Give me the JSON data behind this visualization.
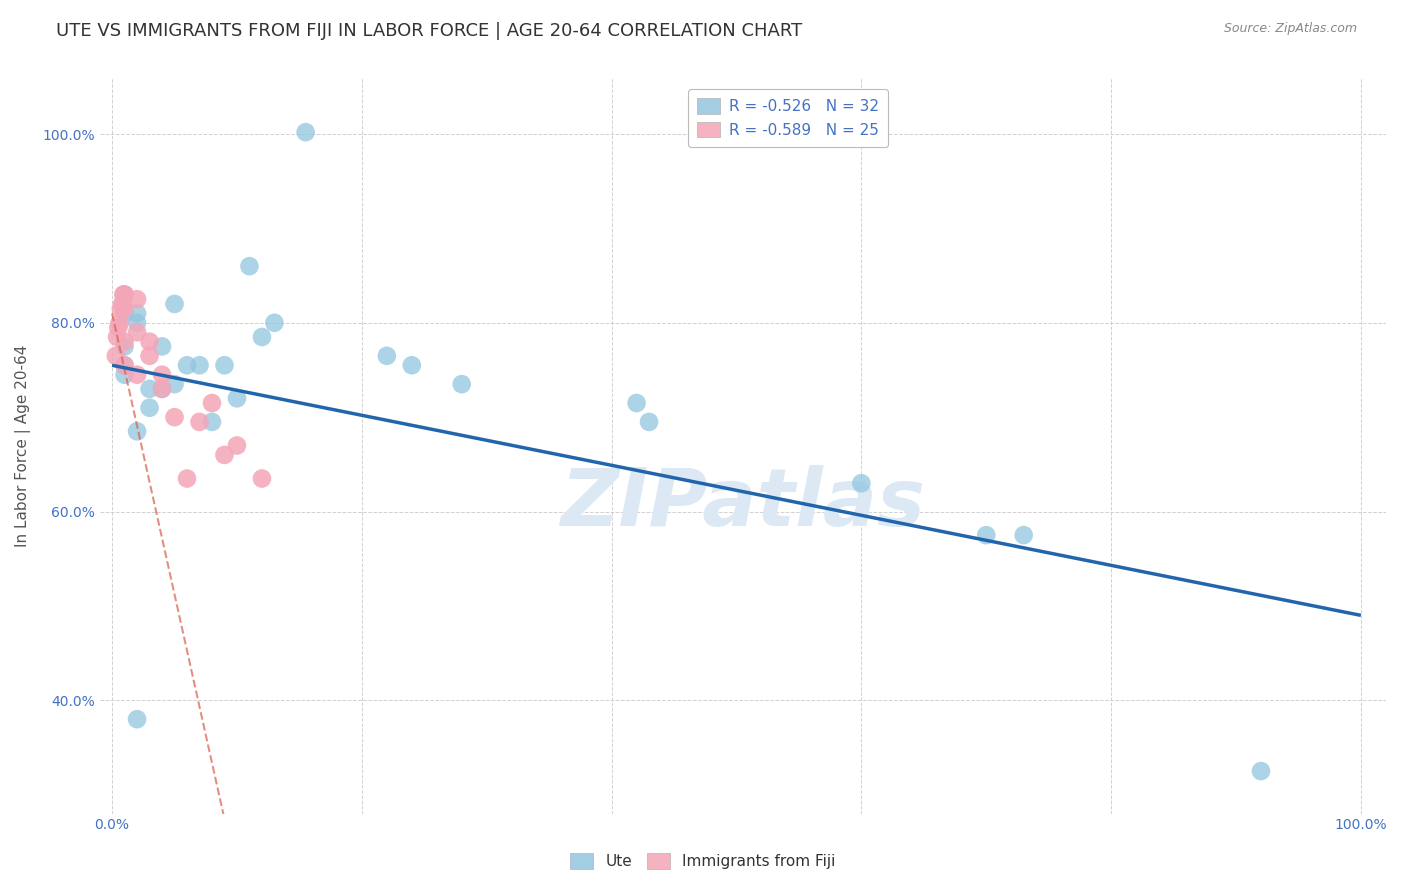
{
  "title": "UTE VS IMMIGRANTS FROM FIJI IN LABOR FORCE | AGE 20-64 CORRELATION CHART",
  "source": "Source: ZipAtlas.com",
  "ylabel": "In Labor Force | Age 20-64",
  "xlim": [
    -0.01,
    1.02
  ],
  "ylim": [
    0.28,
    1.06
  ],
  "yticks": [
    0.4,
    0.6,
    0.8,
    1.0
  ],
  "ytick_labels": [
    "40.0%",
    "60.0%",
    "80.0%",
    "100.0%"
  ],
  "xticks": [
    0.0,
    0.2,
    0.4,
    0.6,
    0.8,
    1.0
  ],
  "xtick_labels": [
    "0.0%",
    "",
    "",
    "",
    "",
    "100.0%"
  ],
  "ute_R": -0.526,
  "ute_N": 32,
  "fiji_R": -0.589,
  "fiji_N": 25,
  "ute_color": "#92c5de",
  "fiji_color": "#f4a6b8",
  "trend_blue": "#2166ac",
  "trend_pink": "#d6604d",
  "watermark": "ZIPatlas",
  "watermark_color": "#dce9f5",
  "ute_x": [
    0.02,
    0.01,
    0.01,
    0.02,
    0.03,
    0.04,
    0.05,
    0.06,
    0.07,
    0.09,
    0.1,
    0.12,
    0.13,
    0.22,
    0.24,
    0.28,
    0.42,
    0.43,
    0.6,
    0.7,
    0.73,
    0.92,
    0.02,
    0.03,
    0.04,
    0.08,
    0.11,
    0.01,
    0.01,
    0.01,
    0.05,
    0.02
  ],
  "ute_y": [
    0.38,
    0.745,
    0.775,
    0.81,
    0.73,
    0.775,
    0.735,
    0.755,
    0.755,
    0.755,
    0.72,
    0.785,
    0.8,
    0.765,
    0.755,
    0.735,
    0.715,
    0.695,
    0.63,
    0.575,
    0.575,
    0.325,
    0.685,
    0.71,
    0.73,
    0.695,
    0.86,
    0.81,
    0.83,
    0.755,
    0.82,
    0.8
  ],
  "ute_outlier_x": [
    0.155
  ],
  "ute_outlier_y": [
    1.002
  ],
  "fiji_x": [
    0.003,
    0.004,
    0.005,
    0.006,
    0.007,
    0.008,
    0.009,
    0.01,
    0.01,
    0.01,
    0.01,
    0.02,
    0.02,
    0.02,
    0.03,
    0.03,
    0.04,
    0.04,
    0.05,
    0.06,
    0.07,
    0.08,
    0.09,
    0.1,
    0.12
  ],
  "fiji_y": [
    0.765,
    0.785,
    0.795,
    0.8,
    0.815,
    0.82,
    0.83,
    0.83,
    0.815,
    0.78,
    0.755,
    0.825,
    0.79,
    0.745,
    0.765,
    0.78,
    0.745,
    0.73,
    0.7,
    0.635,
    0.695,
    0.715,
    0.66,
    0.67,
    0.635
  ],
  "fiji_line_x_start": 0.0,
  "fiji_line_x_end": 0.22,
  "ute_line_x_start": 0.0,
  "ute_line_x_end": 1.0,
  "background_color": "#ffffff",
  "grid_color": "#cccccc",
  "title_fontsize": 13,
  "label_fontsize": 11,
  "tick_fontsize": 10,
  "legend_fontsize": 11
}
